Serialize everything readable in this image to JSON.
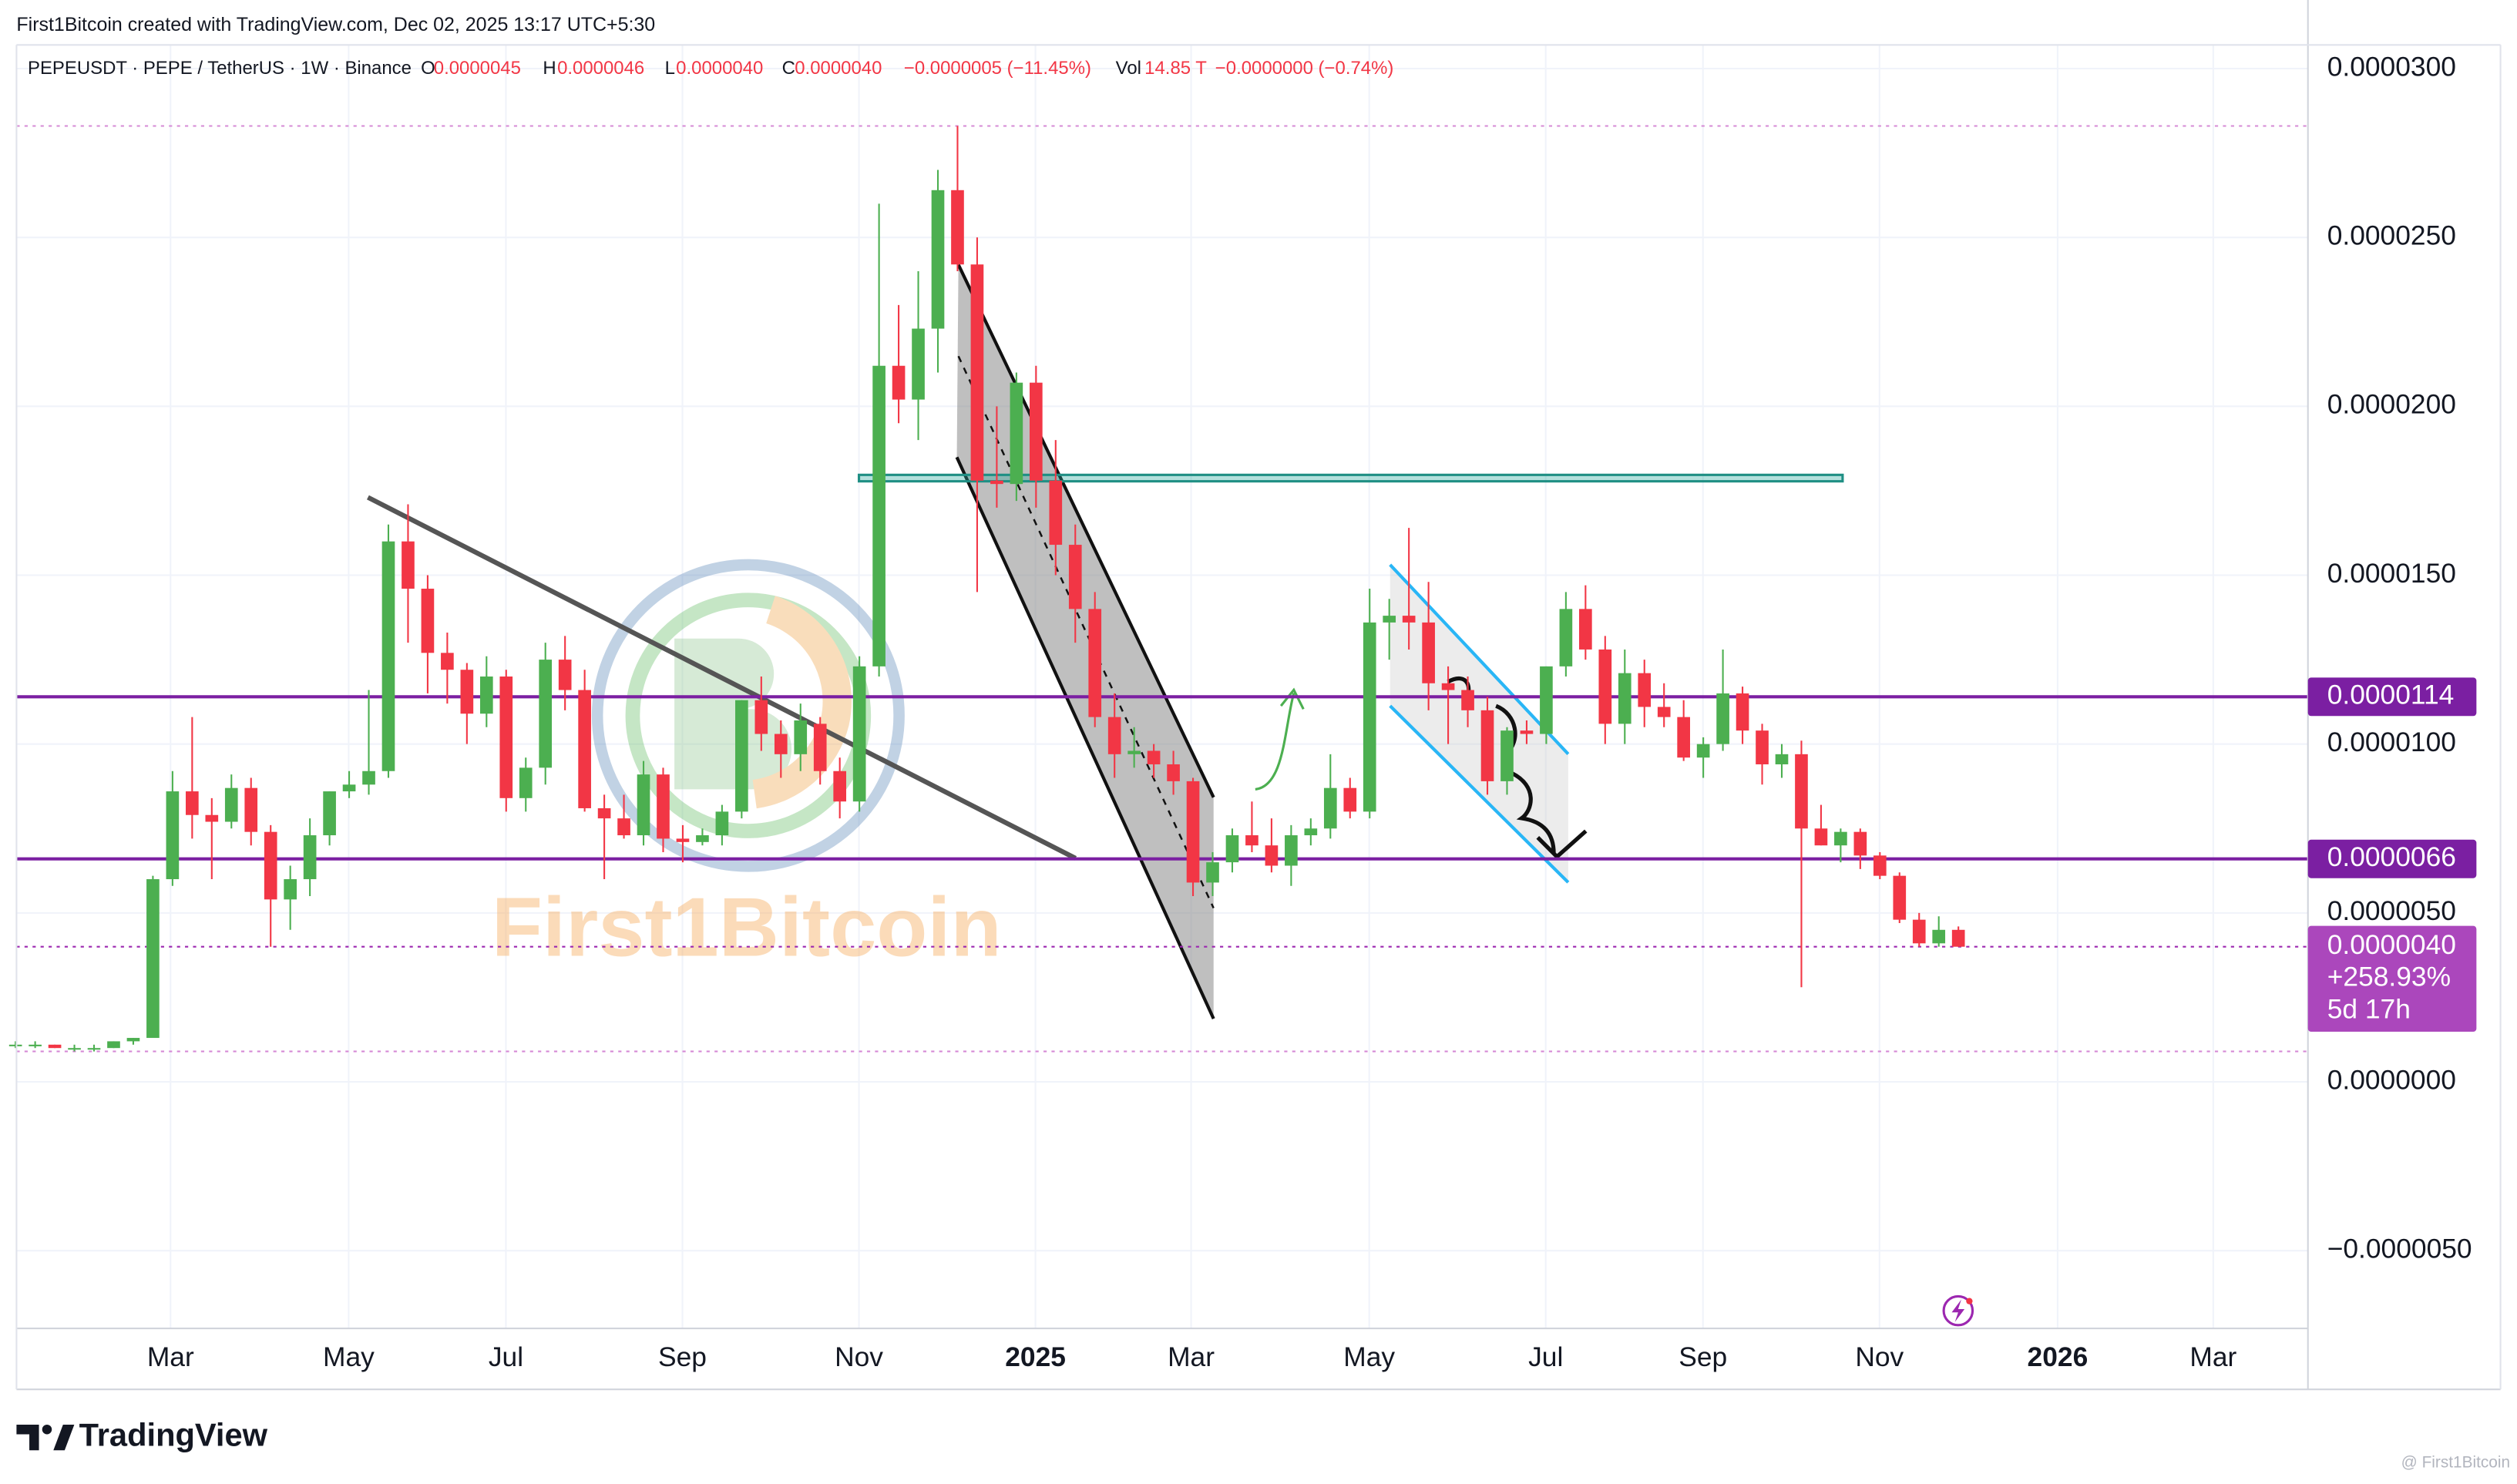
{
  "header": "First1Bitcoin created with TradingView.com, Dec 02, 2025 13:17 UTC+5:30",
  "legend": {
    "symbol": "PEPEUSDT · PEPE / TetherUS · 1W · Binance",
    "items": [
      {
        "key": "O",
        "value": "0.0000045"
      },
      {
        "key": "H",
        "value": "0.0000046"
      },
      {
        "key": "L",
        "value": "0.0000040"
      },
      {
        "key": "C",
        "value": "0.0000040"
      }
    ],
    "change": "−0.0000005 (−11.45%)",
    "vol_key": "Vol",
    "vol": "14.85 T",
    "vol_change": "−0.0000000 (−0.74%)"
  },
  "watermark": "First1Bitcoin",
  "footer": {
    "brand": "TradingView",
    "credit": "@ First1Bitcoin"
  },
  "chart_data": {
    "type": "candlestick",
    "up_color": "#4caf50",
    "down_color": "#f23645",
    "open": [
      1.1e-06,
      1.1e-06,
      1.1e-06,
      1e-06,
      1e-06,
      1e-06,
      1.2e-06,
      1.3e-06,
      6e-06,
      8.6e-06,
      7.9e-06,
      7.7e-06,
      8.7e-06,
      7.4e-06,
      5.4e-06,
      6e-06,
      7.3e-06,
      8.6e-06,
      8.8e-06,
      9.2e-06,
      1.6e-05,
      1.46e-05,
      1.27e-05,
      1.22e-05,
      1.09e-05,
      1.2e-05,
      8.4e-06,
      9.3e-06,
      1.25e-05,
      1.16e-05,
      8.1e-06,
      7.8e-06,
      7.3e-06,
      9.1e-06,
      7.2e-06,
      7.1e-06,
      7.3e-06,
      8e-06,
      1.13e-05,
      1.03e-05,
      9.7e-06,
      1.06e-05,
      9.2e-06,
      8.3e-06,
      1.23e-05,
      2.12e-05,
      2.02e-05,
      2.23e-05,
      2.64e-05,
      2.42e-05,
      1.78e-05,
      1.77e-05,
      2.07e-05,
      1.78e-05,
      1.59e-05,
      1.4e-05,
      1.08e-05,
      9.7e-06,
      9.8e-06,
      9.4e-06,
      8.9e-06,
      5.9e-06,
      6.5e-06,
      7.3e-06,
      7e-06,
      6.4e-06,
      7.3e-06,
      7.5e-06,
      8.7e-06,
      8e-06,
      1.36e-05,
      1.38e-05,
      1.36e-05,
      1.18e-05,
      1.16e-05,
      1.1e-05,
      8.9e-06,
      1.04e-05,
      1.03e-05,
      1.23e-05,
      1.4e-05,
      1.28e-05,
      1.06e-05,
      1.21e-05,
      1.11e-05,
      1.08e-05,
      9.6e-06,
      1e-05,
      1.15e-05,
      1.04e-05,
      9.4e-06,
      9.7e-06,
      7.5e-06,
      7e-06,
      7.4e-06,
      6.7e-06,
      6.1e-06,
      4.8e-06,
      4.1e-06,
      4.5e-06
    ],
    "high": [
      1.2e-06,
      1.2e-06,
      1.1e-06,
      1.1e-06,
      1.1e-06,
      1.2e-06,
      1.3e-06,
      6.1e-06,
      9.2e-06,
      1.08e-05,
      8.4e-06,
      9.1e-06,
      9e-06,
      7.6e-06,
      6.4e-06,
      7.8e-06,
      8.6e-06,
      9.2e-06,
      1.16e-05,
      1.65e-05,
      1.71e-05,
      1.5e-05,
      1.33e-05,
      1.24e-05,
      1.26e-05,
      1.22e-05,
      9.6e-06,
      1.3e-05,
      1.32e-05,
      1.22e-05,
      8.5e-06,
      8.5e-06,
      9.5e-06,
      9.3e-06,
      7.6e-06,
      7.5e-06,
      8.2e-06,
      1.13e-05,
      1.2e-05,
      1.07e-05,
      1.12e-05,
      1.08e-05,
      9.6e-06,
      1.26e-05,
      2.6e-05,
      2.3e-05,
      2.4e-05,
      2.7e-05,
      2.83e-05,
      2.5e-05,
      2e-05,
      2.1e-05,
      2.12e-05,
      1.9e-05,
      1.65e-05,
      1.45e-05,
      1.15e-05,
      1.05e-05,
      1e-05,
      9.8e-06,
      9e-06,
      6.8e-06,
      7.5e-06,
      8.3e-06,
      7.8e-06,
      7.6e-06,
      7.8e-06,
      9.7e-06,
      9e-06,
      1.46e-05,
      1.43e-05,
      1.64e-05,
      1.48e-05,
      1.23e-05,
      1.2e-05,
      1.14e-05,
      1.05e-05,
      1.07e-05,
      1.23e-05,
      1.45e-05,
      1.47e-05,
      1.32e-05,
      1.28e-05,
      1.25e-05,
      1.18e-05,
      1.13e-05,
      1.02e-05,
      1.28e-05,
      1.17e-05,
      1.06e-05,
      1e-05,
      1.01e-05,
      8.2e-06,
      7.5e-06,
      7.5e-06,
      6.8e-06,
      6.2e-06,
      5e-06,
      4.9e-06,
      4.6e-06
    ],
    "low": [
      1e-06,
      1e-06,
      1e-06,
      9e-07,
      9e-07,
      1e-06,
      1.1e-06,
      1.3e-06,
      5.8e-06,
      7.2e-06,
      6e-06,
      7.5e-06,
      7e-06,
      4e-06,
      4.5e-06,
      5.5e-06,
      7e-06,
      8.4e-06,
      8.5e-06,
      9e-06,
      1.3e-05,
      1.15e-05,
      1.12e-05,
      1e-05,
      1.05e-05,
      8e-06,
      8e-06,
      8.8e-06,
      1.1e-05,
      8e-06,
      6e-06,
      7.2e-06,
      7e-06,
      6.8e-06,
      6.5e-06,
      7e-06,
      7e-06,
      7.8e-06,
      9.8e-06,
      9e-06,
      9.2e-06,
      8.8e-06,
      7.8e-06,
      8e-06,
      1.2e-05,
      1.95e-05,
      1.9e-05,
      2.1e-05,
      2.4e-05,
      1.45e-05,
      1.7e-05,
      1.72e-05,
      1.7e-05,
      1.5e-05,
      1.3e-05,
      1.05e-05,
      9e-06,
      9.3e-06,
      9e-06,
      8.5e-06,
      5.5e-06,
      5.5e-06,
      6.2e-06,
      6.8e-06,
      6.2e-06,
      5.8e-06,
      7e-06,
      7.2e-06,
      7.8e-06,
      7.8e-06,
      1.25e-05,
      1.28e-05,
      1.1e-05,
      1e-05,
      1.05e-05,
      8.5e-06,
      8.5e-06,
      1e-05,
      1e-05,
      1.2e-05,
      1.25e-05,
      1e-05,
      1e-05,
      1.05e-05,
      1.05e-05,
      9.5e-06,
      9e-06,
      9.8e-06,
      1e-05,
      8.8e-06,
      9e-06,
      2.8e-06,
      7e-06,
      6.5e-06,
      6.3e-06,
      6e-06,
      4.7e-06,
      4e-06,
      4e-06,
      4e-06
    ],
    "close": [
      1.1e-06,
      1.1e-06,
      1e-06,
      1e-06,
      1e-06,
      1.2e-06,
      1.3e-06,
      6e-06,
      8.6e-06,
      7.9e-06,
      7.7e-06,
      8.7e-06,
      7.4e-06,
      5.4e-06,
      6e-06,
      7.3e-06,
      8.6e-06,
      8.8e-06,
      9.2e-06,
      1.6e-05,
      1.46e-05,
      1.27e-05,
      1.22e-05,
      1.09e-05,
      1.2e-05,
      8.4e-06,
      9.3e-06,
      1.25e-05,
      1.16e-05,
      8.1e-06,
      7.8e-06,
      7.3e-06,
      9.1e-06,
      7.2e-06,
      7.1e-06,
      7.3e-06,
      8e-06,
      1.13e-05,
      1.03e-05,
      9.7e-06,
      1.07e-05,
      9.2e-06,
      8.3e-06,
      1.23e-05,
      2.12e-05,
      2.02e-05,
      2.23e-05,
      2.64e-05,
      2.42e-05,
      1.78e-05,
      1.77e-05,
      2.07e-05,
      1.78e-05,
      1.59e-05,
      1.4e-05,
      1.08e-05,
      9.7e-06,
      9.8e-06,
      9.4e-06,
      8.9e-06,
      5.9e-06,
      6.5e-06,
      7.3e-06,
      7e-06,
      6.4e-06,
      7.3e-06,
      7.5e-06,
      8.7e-06,
      8e-06,
      1.36e-05,
      1.38e-05,
      1.36e-05,
      1.18e-05,
      1.16e-05,
      1.1e-05,
      8.9e-06,
      1.04e-05,
      1.03e-05,
      1.23e-05,
      1.4e-05,
      1.28e-05,
      1.06e-05,
      1.21e-05,
      1.11e-05,
      1.08e-05,
      9.6e-06,
      1e-05,
      1.15e-05,
      1.04e-05,
      9.4e-06,
      9.7e-06,
      7.5e-06,
      7e-06,
      7.4e-06,
      6.7e-06,
      6.1e-06,
      4.8e-06,
      4.1e-06,
      4.5e-06,
      4e-06
    ],
    "ylim": [
      -7.3e-06,
      3.07e-05
    ],
    "yticks": [
      {
        "value": -5e-06,
        "label": "−0.0000050"
      },
      {
        "value": 0,
        "label": "0.0000000"
      },
      {
        "value": 5e-06,
        "label": "0.0000050"
      },
      {
        "value": 1e-05,
        "label": "0.0000100"
      },
      {
        "value": 1.5e-05,
        "label": "0.0000150"
      },
      {
        "value": 2e-05,
        "label": "0.0000200"
      },
      {
        "value": 2.5e-05,
        "label": "0.0000250"
      },
      {
        "value": 3e-05,
        "label": "0.0000300"
      }
    ],
    "xticks": [
      "Mar",
      "May",
      "Jul",
      "Sep",
      "Nov",
      "2025",
      "Mar",
      "May",
      "Jul",
      "Sep",
      "Nov",
      "2026",
      "Mar"
    ],
    "grid": true,
    "levels": [
      {
        "value": 1.14e-05,
        "label": "0.0000114",
        "color": "#7b1fa2"
      },
      {
        "value": 6.6e-06,
        "label": "0.0000066",
        "color": "#7b1fa2"
      }
    ],
    "last_price": {
      "label": "0.0000040",
      "change": "+258.93%",
      "countdown": "5d 17h",
      "color": "#ab47bc"
    }
  }
}
